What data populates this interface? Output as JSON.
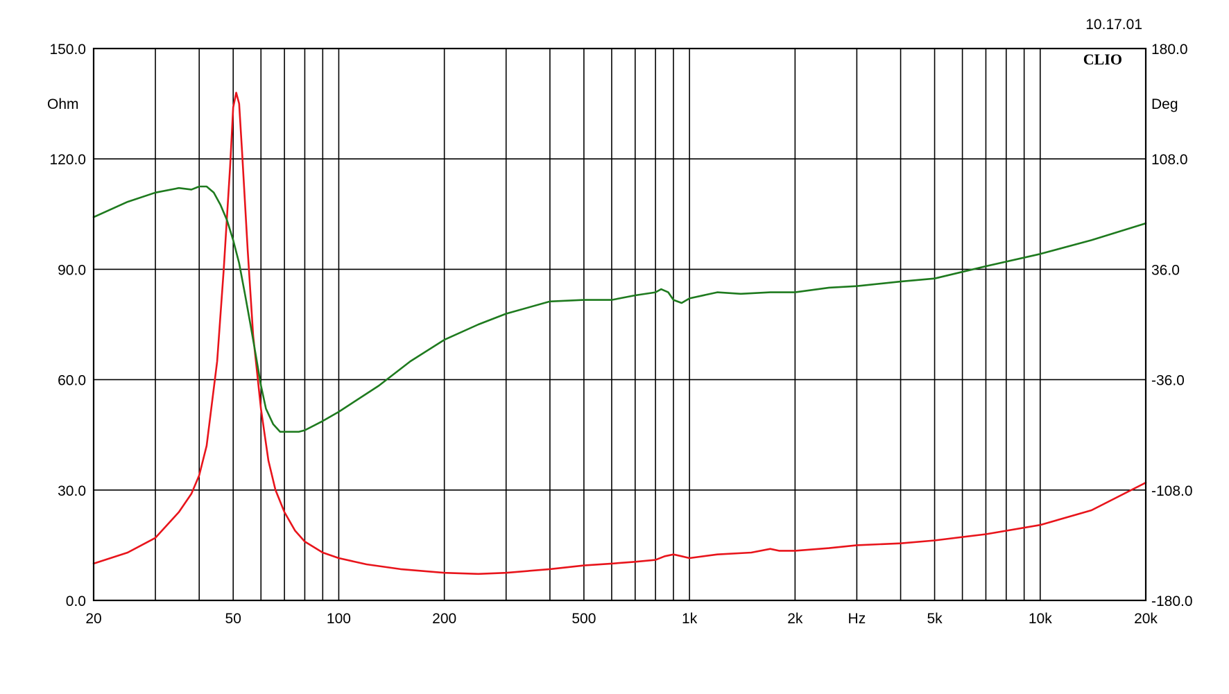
{
  "chart_data": {
    "type": "line",
    "date_stamp": "10.17.01",
    "brand": "CLIO",
    "x_scale": "log",
    "xlim": [
      20,
      20000
    ],
    "x_ticks": [
      {
        "value": 20,
        "label": "20"
      },
      {
        "value": 50,
        "label": "50"
      },
      {
        "value": 100,
        "label": "100"
      },
      {
        "value": 200,
        "label": "200"
      },
      {
        "value": 500,
        "label": "500"
      },
      {
        "value": 1000,
        "label": "1k"
      },
      {
        "value": 2000,
        "label": "2k"
      },
      {
        "value": 3000,
        "label": "Hz"
      },
      {
        "value": 5000,
        "label": "5k"
      },
      {
        "value": 10000,
        "label": "10k"
      },
      {
        "value": 20000,
        "label": "20k"
      }
    ],
    "x_gridlines": [
      30,
      40,
      50,
      60,
      70,
      80,
      90,
      100,
      200,
      300,
      400,
      500,
      600,
      700,
      800,
      900,
      1000,
      2000,
      3000,
      4000,
      5000,
      6000,
      7000,
      8000,
      9000,
      10000,
      20000
    ],
    "y_left": {
      "unit": "Ohm",
      "ylim": [
        0,
        150
      ],
      "ticks": [
        "0.0",
        "30.0",
        "60.0",
        "90.0",
        "120.0",
        "150.0"
      ]
    },
    "y_right": {
      "unit": "Deg",
      "ylim": [
        -180,
        180
      ],
      "ticks": [
        "-180.0",
        "-108.0",
        "-36.0",
        "36.0",
        "108.0",
        "180.0"
      ]
    },
    "grid": true,
    "series": [
      {
        "axis": "left",
        "color": "#e8141b",
        "points": [
          [
            20,
            10
          ],
          [
            25,
            13
          ],
          [
            30,
            17
          ],
          [
            35,
            24
          ],
          [
            38,
            29
          ],
          [
            40,
            34
          ],
          [
            42,
            42
          ],
          [
            45,
            65
          ],
          [
            47,
            90
          ],
          [
            49,
            118
          ],
          [
            50,
            134
          ],
          [
            51,
            138
          ],
          [
            52,
            135
          ],
          [
            53,
            122
          ],
          [
            55,
            95
          ],
          [
            57,
            72
          ],
          [
            60,
            52
          ],
          [
            63,
            38
          ],
          [
            66,
            30
          ],
          [
            70,
            24
          ],
          [
            75,
            19
          ],
          [
            80,
            16
          ],
          [
            90,
            13
          ],
          [
            100,
            11.5
          ],
          [
            120,
            9.8
          ],
          [
            150,
            8.5
          ],
          [
            200,
            7.5
          ],
          [
            250,
            7.2
          ],
          [
            300,
            7.5
          ],
          [
            400,
            8.5
          ],
          [
            500,
            9.5
          ],
          [
            600,
            10
          ],
          [
            700,
            10.5
          ],
          [
            800,
            11
          ],
          [
            850,
            12
          ],
          [
            900,
            12.5
          ],
          [
            950,
            12
          ],
          [
            1000,
            11.5
          ],
          [
            1200,
            12.5
          ],
          [
            1500,
            13
          ],
          [
            1700,
            14
          ],
          [
            1800,
            13.5
          ],
          [
            2000,
            13.5
          ],
          [
            2500,
            14.2
          ],
          [
            3000,
            15
          ],
          [
            4000,
            15.5
          ],
          [
            5000,
            16.3
          ],
          [
            7000,
            18
          ],
          [
            10000,
            20.5
          ],
          [
            14000,
            24.5
          ],
          [
            20000,
            32
          ]
        ]
      },
      {
        "axis": "right",
        "color": "#1e7a1e",
        "points": [
          [
            20,
            70
          ],
          [
            25,
            80
          ],
          [
            30,
            86
          ],
          [
            35,
            89
          ],
          [
            38,
            88
          ],
          [
            40,
            90
          ],
          [
            42,
            90
          ],
          [
            44,
            86
          ],
          [
            46,
            78
          ],
          [
            48,
            68
          ],
          [
            50,
            55
          ],
          [
            52,
            40
          ],
          [
            54,
            20
          ],
          [
            56,
            0
          ],
          [
            58,
            -20
          ],
          [
            60,
            -40
          ],
          [
            62,
            -55
          ],
          [
            65,
            -65
          ],
          [
            68,
            -70
          ],
          [
            72,
            -70
          ],
          [
            77,
            -70
          ],
          [
            80,
            -69
          ],
          [
            90,
            -63
          ],
          [
            100,
            -57
          ],
          [
            130,
            -40
          ],
          [
            160,
            -24
          ],
          [
            200,
            -10
          ],
          [
            250,
            0
          ],
          [
            300,
            7
          ],
          [
            400,
            15
          ],
          [
            500,
            16
          ],
          [
            600,
            16
          ],
          [
            700,
            19
          ],
          [
            800,
            21
          ],
          [
            830,
            23
          ],
          [
            870,
            21
          ],
          [
            900,
            16
          ],
          [
            950,
            14
          ],
          [
            1000,
            17
          ],
          [
            1200,
            21
          ],
          [
            1400,
            20
          ],
          [
            1700,
            21
          ],
          [
            2000,
            21
          ],
          [
            2500,
            24
          ],
          [
            3000,
            25
          ],
          [
            4000,
            28
          ],
          [
            5000,
            30
          ],
          [
            7000,
            38
          ],
          [
            10000,
            46
          ],
          [
            14000,
            55
          ],
          [
            20000,
            66
          ]
        ]
      }
    ]
  }
}
